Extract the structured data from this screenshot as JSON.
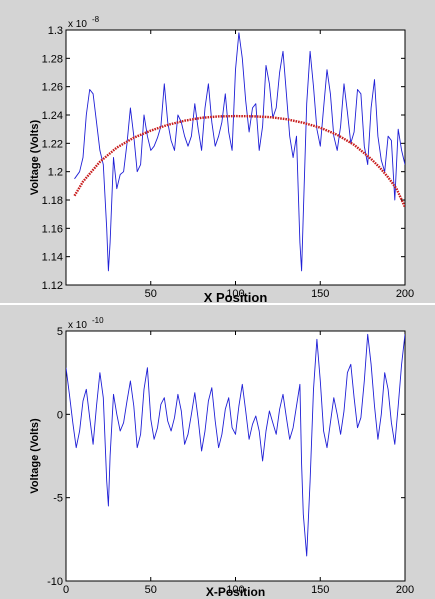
{
  "chart_data": [
    {
      "type": "line",
      "xlabel": "X Position",
      "ylabel": "Voltage (Volts)",
      "exponent_base": "x 10",
      "exponent_power": "-8",
      "xlim": [
        0,
        200
      ],
      "ylim": [
        1.12,
        1.3
      ],
      "xticks": [
        "50",
        "100",
        "150",
        "200"
      ],
      "yticks": [
        "1.12",
        "1.14",
        "1.16",
        "1.18",
        "1.2",
        "1.22",
        "1.24",
        "1.26",
        "1.28",
        "1.3"
      ],
      "series": [
        {
          "color": "#1f1fd6",
          "style": "line",
          "x": [
            5,
            8,
            10,
            12,
            14,
            16,
            18,
            20,
            22,
            24,
            25,
            26,
            28,
            30,
            32,
            34,
            36,
            38,
            40,
            42,
            44,
            46,
            48,
            50,
            52,
            54,
            56,
            58,
            60,
            62,
            64,
            66,
            68,
            70,
            72,
            74,
            76,
            78,
            80,
            82,
            84,
            86,
            88,
            90,
            92,
            94,
            96,
            98,
            100,
            102,
            104,
            106,
            108,
            110,
            112,
            114,
            116,
            118,
            120,
            122,
            124,
            126,
            128,
            130,
            132,
            134,
            136,
            138,
            139,
            140,
            142,
            144,
            146,
            148,
            150,
            152,
            154,
            156,
            158,
            160,
            162,
            164,
            166,
            168,
            170,
            172,
            174,
            176,
            178,
            180,
            182,
            184,
            186,
            188,
            190,
            192,
            194,
            196,
            198,
            200
          ],
          "y": [
            1.195,
            1.2,
            1.21,
            1.24,
            1.258,
            1.255,
            1.235,
            1.215,
            1.205,
            1.16,
            1.13,
            1.15,
            1.21,
            1.188,
            1.198,
            1.2,
            1.22,
            1.245,
            1.225,
            1.2,
            1.205,
            1.24,
            1.225,
            1.215,
            1.218,
            1.224,
            1.232,
            1.262,
            1.235,
            1.222,
            1.215,
            1.24,
            1.235,
            1.225,
            1.218,
            1.225,
            1.248,
            1.23,
            1.215,
            1.245,
            1.262,
            1.235,
            1.218,
            1.225,
            1.235,
            1.255,
            1.228,
            1.215,
            1.272,
            1.298,
            1.28,
            1.25,
            1.228,
            1.245,
            1.248,
            1.215,
            1.232,
            1.275,
            1.262,
            1.238,
            1.245,
            1.27,
            1.285,
            1.255,
            1.225,
            1.21,
            1.225,
            1.15,
            1.13,
            1.17,
            1.248,
            1.285,
            1.26,
            1.23,
            1.218,
            1.245,
            1.272,
            1.255,
            1.225,
            1.215,
            1.232,
            1.262,
            1.242,
            1.22,
            1.228,
            1.258,
            1.255,
            1.218,
            1.205,
            1.245,
            1.265,
            1.225,
            1.208,
            1.2,
            1.225,
            1.222,
            1.18,
            1.23,
            1.215,
            1.205
          ]
        },
        {
          "color": "#c81e1e",
          "style": "curve",
          "x": [
            5,
            10,
            20,
            30,
            40,
            50,
            60,
            70,
            80,
            90,
            100,
            110,
            120,
            130,
            140,
            150,
            160,
            170,
            180,
            185,
            190,
            195,
            200
          ],
          "y": [
            1.183,
            1.193,
            1.207,
            1.217,
            1.224,
            1.229,
            1.233,
            1.236,
            1.238,
            1.239,
            1.2392,
            1.2391,
            1.2385,
            1.237,
            1.2345,
            1.231,
            1.226,
            1.219,
            1.209,
            1.203,
            1.196,
            1.188,
            1.175
          ]
        }
      ]
    },
    {
      "type": "line",
      "xlabel": "X-Position",
      "ylabel": "Voltage (Volts)",
      "exponent_base": "x 10",
      "exponent_power": "-10",
      "xlim": [
        0,
        200
      ],
      "ylim": [
        -10,
        5
      ],
      "xticks": [
        "0",
        "50",
        "100",
        "150",
        "200"
      ],
      "yticks": [
        "-10",
        "-5",
        "0",
        "5"
      ],
      "series": [
        {
          "color": "#1f1fd6",
          "style": "line",
          "x": [
            0,
            2,
            4,
            6,
            8,
            10,
            12,
            14,
            16,
            18,
            20,
            22,
            24,
            25,
            26,
            28,
            30,
            32,
            34,
            36,
            38,
            40,
            42,
            44,
            46,
            48,
            50,
            52,
            54,
            56,
            58,
            60,
            62,
            64,
            66,
            68,
            70,
            72,
            74,
            76,
            78,
            80,
            82,
            84,
            86,
            88,
            90,
            92,
            94,
            96,
            98,
            100,
            102,
            104,
            106,
            108,
            110,
            112,
            114,
            116,
            118,
            120,
            122,
            124,
            126,
            128,
            130,
            132,
            134,
            136,
            138,
            139,
            140,
            142,
            144,
            146,
            148,
            150,
            152,
            154,
            156,
            158,
            160,
            162,
            164,
            166,
            168,
            170,
            172,
            174,
            176,
            178,
            180,
            182,
            184,
            186,
            188,
            190,
            192,
            194,
            196,
            198,
            200
          ],
          "y": [
            2.8,
            1.2,
            -0.5,
            -2.0,
            -1.0,
            0.8,
            1.5,
            -0.2,
            -1.8,
            0.5,
            2.5,
            1.0,
            -4.0,
            -5.5,
            -2.5,
            1.2,
            0.0,
            -1.0,
            -0.5,
            0.8,
            2.0,
            0.5,
            -2.0,
            -1.2,
            1.5,
            2.8,
            -0.3,
            -1.5,
            -0.8,
            0.6,
            1.0,
            -0.4,
            -1.0,
            -0.2,
            1.2,
            0.2,
            -1.8,
            -1.2,
            0.0,
            1.3,
            -0.3,
            -2.2,
            -1.0,
            0.8,
            1.6,
            -0.4,
            -2.0,
            -1.2,
            0.3,
            1.0,
            -0.8,
            -1.2,
            0.5,
            1.8,
            0.2,
            -1.5,
            -0.6,
            -0.1,
            -1.0,
            -2.8,
            -1.0,
            0.2,
            -0.5,
            -1.2,
            0.3,
            1.2,
            -0.2,
            -1.5,
            -0.8,
            0.5,
            1.8,
            -3.0,
            -6.0,
            -8.5,
            -4.0,
            1.5,
            4.5,
            2.0,
            -1.0,
            -2.0,
            -0.5,
            1.0,
            0.0,
            -1.2,
            0.2,
            2.5,
            3.0,
            1.0,
            -0.8,
            -0.2,
            2.0,
            4.8,
            3.0,
            0.5,
            -1.5,
            0.0,
            2.5,
            1.5,
            -0.5,
            -1.8,
            0.5,
            3.0,
            4.8
          ]
        }
      ]
    }
  ]
}
